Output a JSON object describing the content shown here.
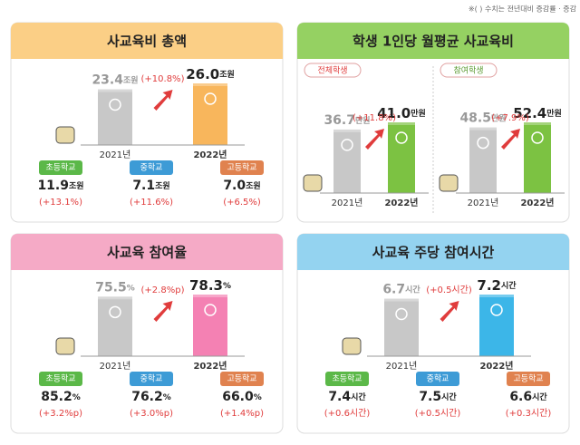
{
  "note": "※(   ) 수치는 전년대비 증감률 · 증감",
  "school_colors": [
    "#5bb848",
    "#3d9bd6",
    "#e0824f"
  ],
  "panels": [
    {
      "title": "사교육비 총액",
      "unit": "조원",
      "header_color": "#fbcf86",
      "bar_color": "#f8b65c",
      "groups": [
        {
          "bars": [
            {
              "year": "2021년",
              "value": 23.4
            },
            {
              "year": "2022년",
              "value": 26,
              "label": "26.0"
            }
          ],
          "change": "(+10.8%)"
        }
      ],
      "schools": [
        {
          "name": "초등학교",
          "value": 11.9,
          "change": "(+13.1%)"
        },
        {
          "name": "중학교",
          "value": 7.1,
          "change": "(+11.6%)"
        },
        {
          "name": "고등학교",
          "value": 7,
          "label": "7.0",
          "change": "(+6.5%)"
        }
      ]
    },
    {
      "title": "학생 1인당 월평균 사교육비",
      "unit": "만원",
      "header_color": "#95d162",
      "bar_color": "#7cc242",
      "groups": [
        {
          "label": "전체학생",
          "bars": [
            {
              "year": "2021년",
              "value": 36.7
            },
            {
              "year": "2022년",
              "value": 41,
              "label": "41.0"
            }
          ],
          "change": "(+11.8%)"
        },
        {
          "label": "참여학생",
          "bars": [
            {
              "year": "2021년",
              "value": 48.5
            },
            {
              "year": "2022년",
              "value": 52.4
            }
          ],
          "change": "(+7.9%)"
        }
      ]
    },
    {
      "title": "사교육 참여율",
      "unit": "%",
      "header_color": "#f5aac6",
      "bar_color": "#f481b3",
      "groups": [
        {
          "bars": [
            {
              "year": "2021년",
              "value": 75.5
            },
            {
              "year": "2022년",
              "value": 78.3
            }
          ],
          "change": "(+2.8%p)"
        }
      ],
      "schools": [
        {
          "name": "초등학교",
          "value": 85.2,
          "change": "(+3.2%p)"
        },
        {
          "name": "중학교",
          "value": 76.2,
          "change": "(+3.0%p)"
        },
        {
          "name": "고등학교",
          "value": 66,
          "label": "66.0",
          "change": "(+1.4%p)"
        }
      ]
    },
    {
      "title": "사교육 주당 참여시간",
      "unit": "시간",
      "header_color": "#94d3f0",
      "bar_color": "#3cb6e8",
      "groups": [
        {
          "bars": [
            {
              "year": "2021년",
              "value": 6.7
            },
            {
              "year": "2022년",
              "value": 7.2
            }
          ],
          "change": "(+0.5시간)"
        }
      ],
      "schools": [
        {
          "name": "초등학교",
          "value": 7.4,
          "change": "(+0.6시간)"
        },
        {
          "name": "중학교",
          "value": 7.5,
          "change": "(+0.5시간)"
        },
        {
          "name": "고등학교",
          "value": 6.6,
          "change": "(+0.3시간)"
        }
      ]
    }
  ]
}
